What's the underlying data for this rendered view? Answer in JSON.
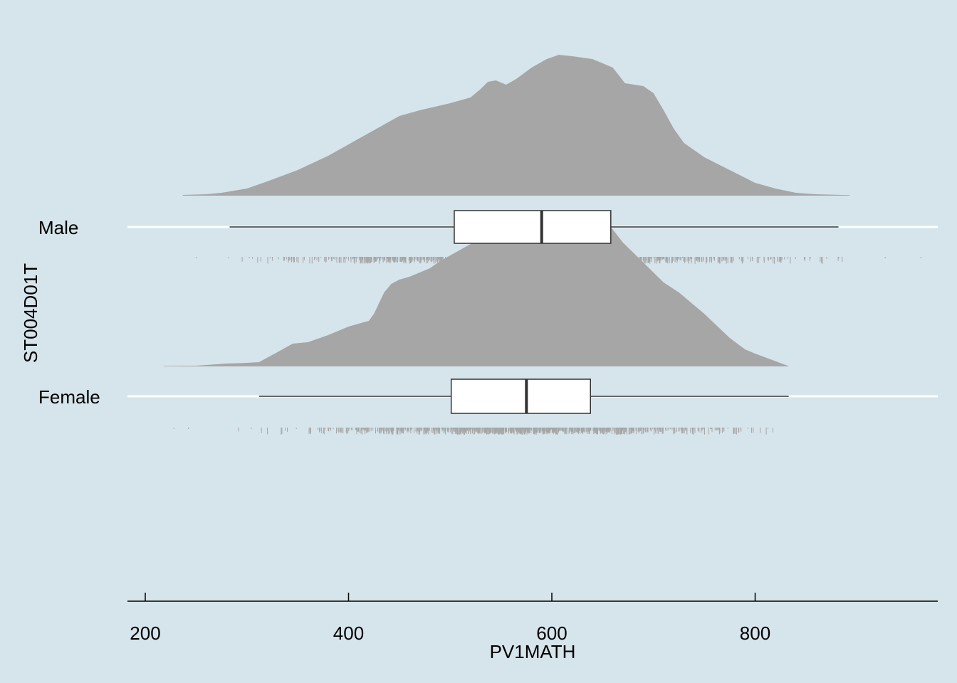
{
  "chart_data": {
    "type": "raincloud",
    "xlabel": "PV1MATH",
    "ylabel": "ST004D01T",
    "xlim": [
      184,
      982
    ],
    "x_ticks": [
      200,
      400,
      600,
      800
    ],
    "x_tick_labels": [
      "200",
      "400",
      "600",
      "800"
    ],
    "grid": "horizontal major lines only",
    "background": "#d6e4eb",
    "density_color": "#a6a6a6",
    "box_fill": "#ffffff",
    "series": [
      {
        "name": "Male",
        "box": {
          "whisker_low": 283,
          "q1": 504,
          "median": 590,
          "q3": 658,
          "whisker_high": 882
        },
        "data_range": [
          237,
          970
        ],
        "density": {
          "x": [
            237,
            260,
            275,
            300,
            320,
            350,
            380,
            400,
            420,
            450,
            470,
            500,
            520,
            530,
            537,
            545,
            555,
            565,
            580,
            595,
            607,
            620,
            640,
            660,
            672,
            690,
            700,
            710,
            720,
            730,
            750,
            775,
            800,
            820,
            840,
            860,
            893
          ],
          "y": [
            0.005,
            0.01,
            0.02,
            0.05,
            0.1,
            0.18,
            0.28,
            0.36,
            0.44,
            0.56,
            0.6,
            0.65,
            0.69,
            0.75,
            0.8,
            0.81,
            0.78,
            0.82,
            0.9,
            0.96,
            0.99,
            0.98,
            0.96,
            0.9,
            0.79,
            0.77,
            0.72,
            0.6,
            0.47,
            0.37,
            0.27,
            0.18,
            0.09,
            0.05,
            0.02,
            0.01,
            0.004
          ]
        }
      },
      {
        "name": "Female",
        "box": {
          "whisker_low": 312,
          "q1": 501,
          "median": 575,
          "q3": 638,
          "whisker_high": 833
        },
        "data_range": [
          218,
          833
        ],
        "density": {
          "x": [
            218,
            250,
            280,
            300,
            312,
            330,
            345,
            360,
            380,
            400,
            420,
            425,
            435,
            442,
            450,
            460,
            470,
            480,
            490,
            500,
            520,
            540,
            560,
            580,
            600,
            620,
            640,
            658,
            670,
            690,
            710,
            725,
            750,
            775,
            790,
            800,
            833
          ],
          "y": [
            0.003,
            0.005,
            0.02,
            0.025,
            0.03,
            0.1,
            0.16,
            0.17,
            0.22,
            0.28,
            0.32,
            0.37,
            0.52,
            0.58,
            0.61,
            0.63,
            0.66,
            0.69,
            0.74,
            0.78,
            0.86,
            0.95,
            1.02,
            1.07,
            1.09,
            1.07,
            1.01,
            0.98,
            0.87,
            0.73,
            0.59,
            0.52,
            0.37,
            0.2,
            0.12,
            0.09,
            0.002
          ]
        }
      }
    ]
  }
}
